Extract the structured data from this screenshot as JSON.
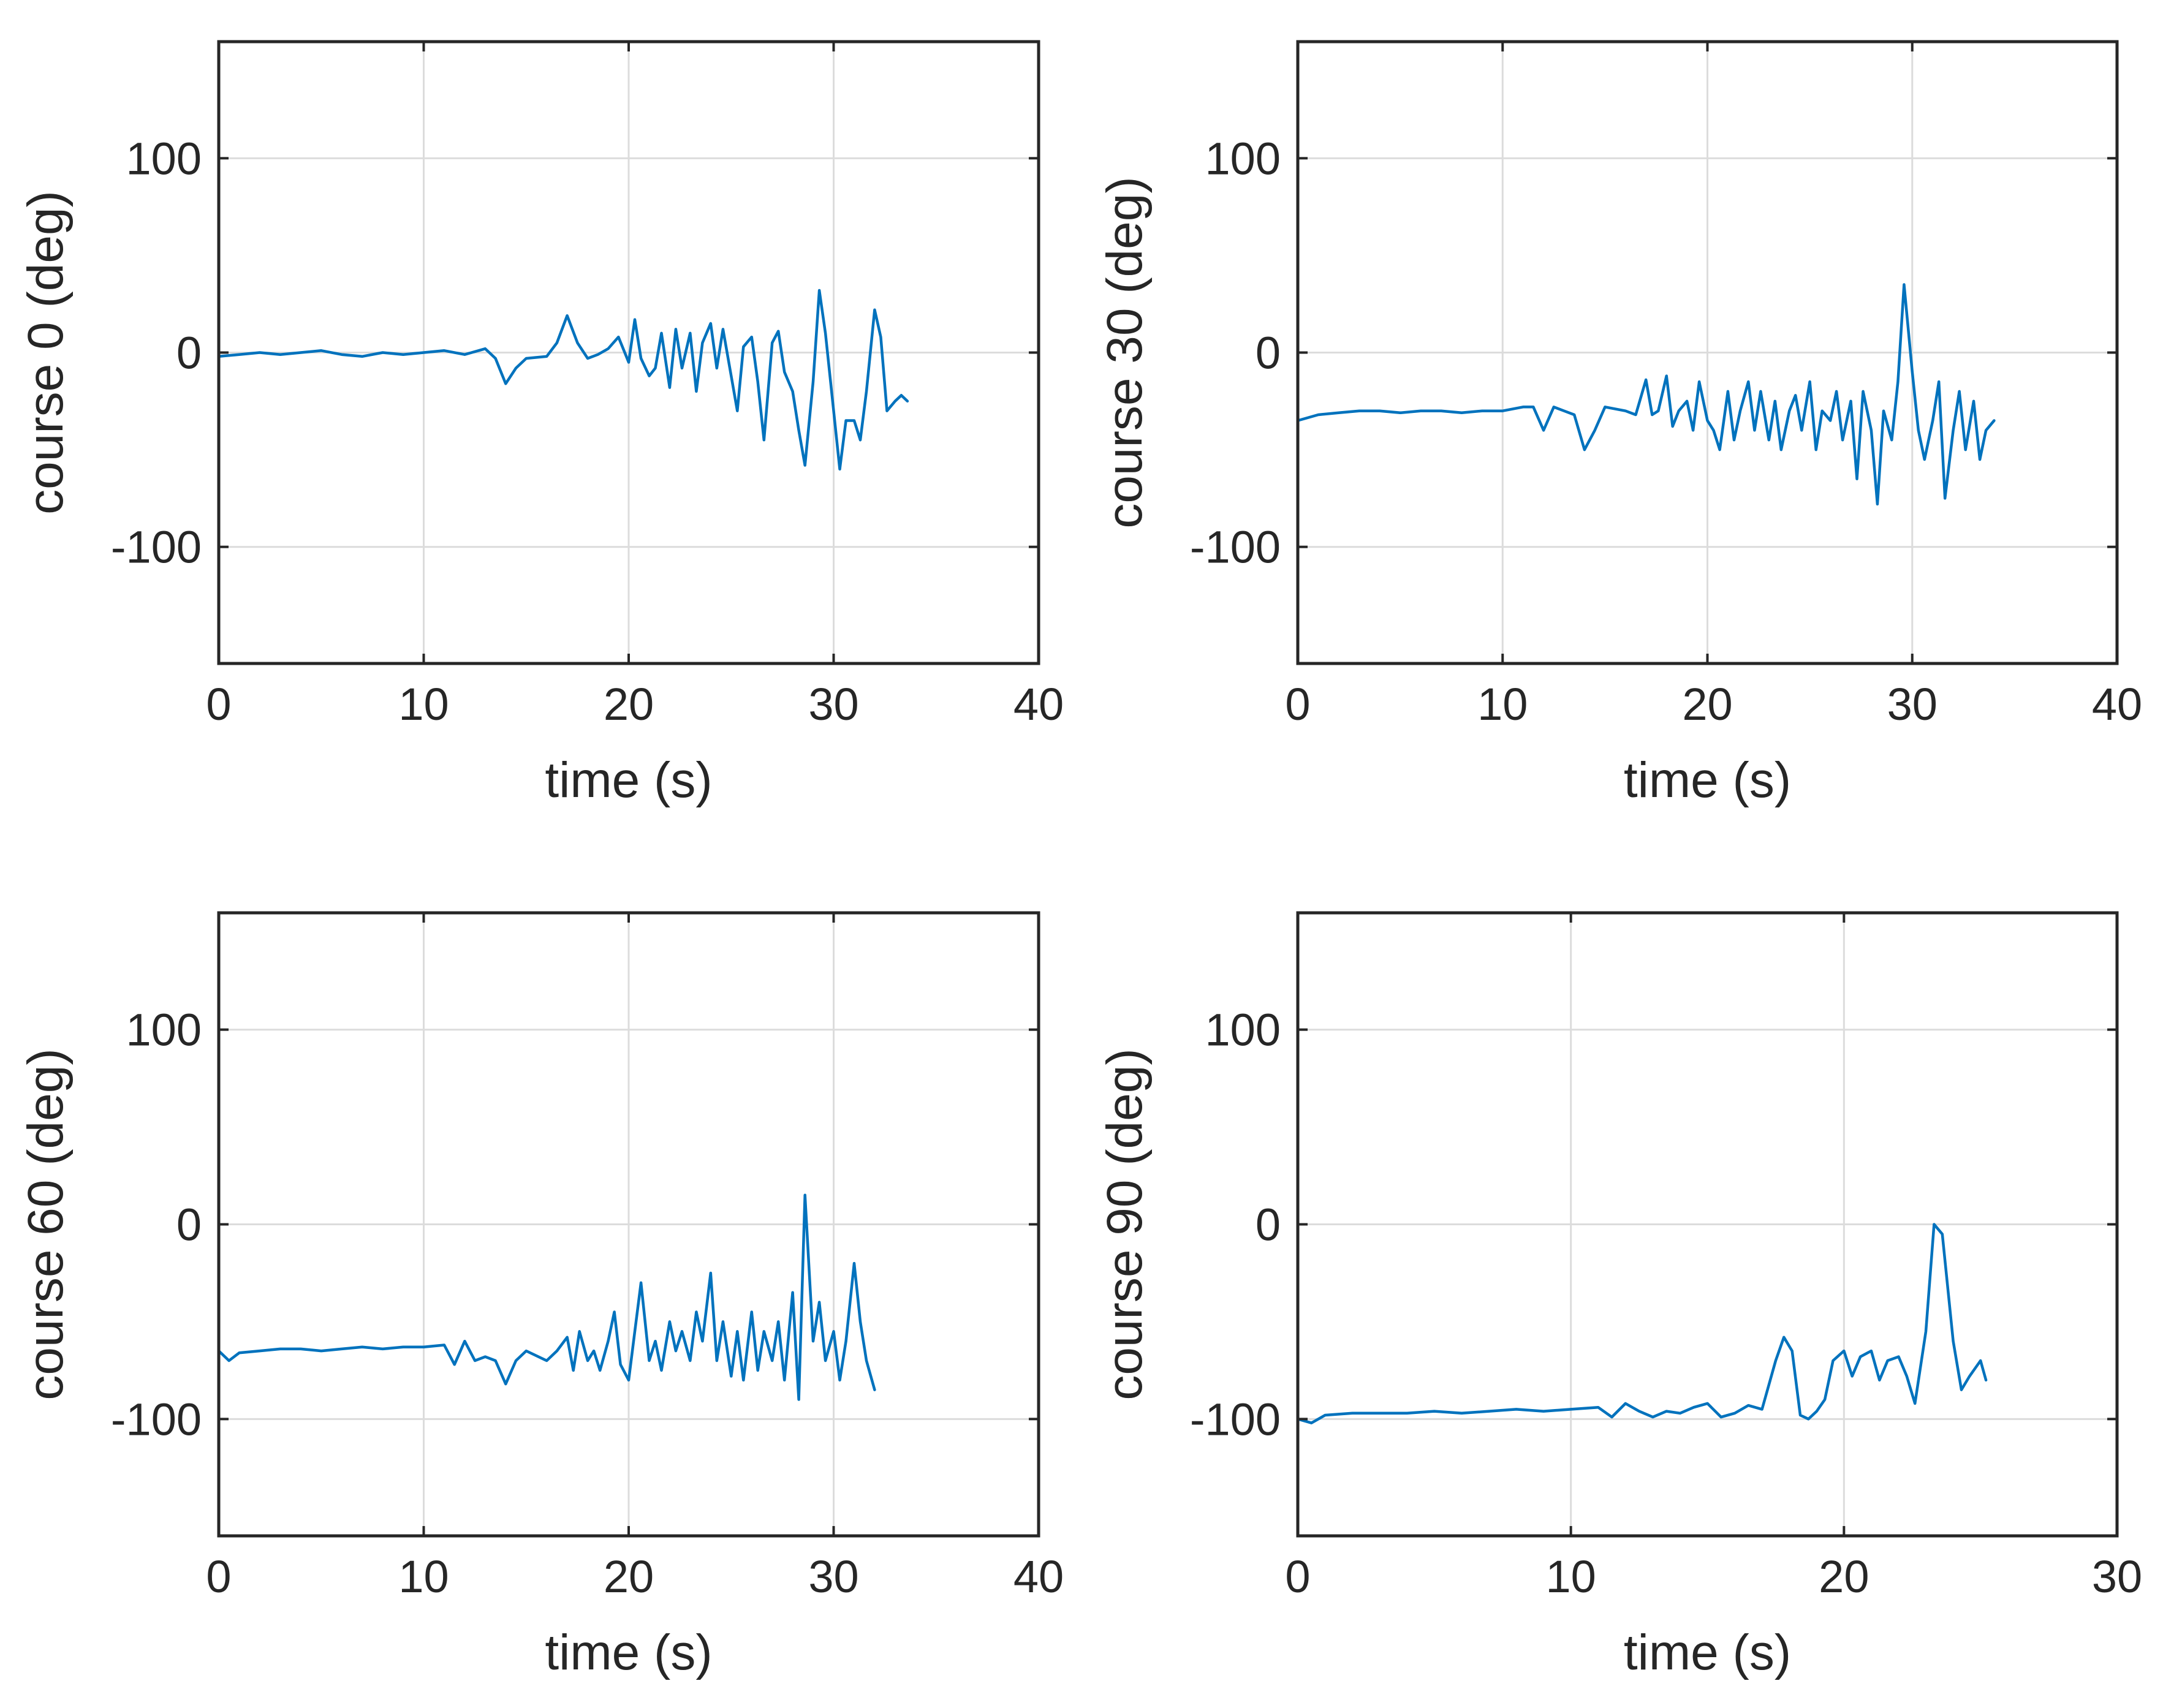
{
  "colors": {
    "series": "#0072BD",
    "axis": "#262626",
    "grid": "#dcdcdc"
  },
  "chart_data": [
    {
      "type": "line",
      "xlabel": "time (s)",
      "ylabel": "course 0 (deg)",
      "xlim": [
        0,
        40
      ],
      "ylim": [
        -160,
        160
      ],
      "xticks": [
        0,
        10,
        20,
        30,
        40
      ],
      "yticks": [
        -100,
        0,
        100
      ],
      "grid": true,
      "series": [
        {
          "name": "course 0",
          "x": [
            0,
            1,
            2,
            3,
            4,
            5,
            6,
            7,
            8,
            9,
            10,
            11,
            12,
            13,
            13.5,
            14,
            14.5,
            15,
            16,
            16.5,
            17,
            17.5,
            18,
            18.5,
            19,
            19.5,
            20,
            20.3,
            20.6,
            21,
            21.3,
            21.6,
            22,
            22.3,
            22.6,
            23,
            23.3,
            23.6,
            24,
            24.3,
            24.6,
            25,
            25.3,
            25.6,
            26,
            26.3,
            26.6,
            27,
            27.3,
            27.6,
            28,
            28.3,
            28.6,
            29,
            29.3,
            29.6,
            30,
            30.3,
            30.6,
            31,
            31.3,
            31.6,
            32,
            32.3,
            32.6,
            33,
            33.3,
            33.6
          ],
          "values": [
            -2,
            -1,
            0,
            -1,
            0,
            1,
            -1,
            -2,
            0,
            -1,
            0,
            1,
            -1,
            2,
            -3,
            -16,
            -8,
            -3,
            -2,
            5,
            19,
            5,
            -3,
            -1,
            2,
            8,
            -5,
            17,
            -3,
            -12,
            -8,
            10,
            -18,
            12,
            -8,
            10,
            -20,
            5,
            15,
            -8,
            12,
            -12,
            -30,
            3,
            8,
            -15,
            -45,
            5,
            11,
            -10,
            -20,
            -40,
            -58,
            -15,
            32,
            10,
            -30,
            -60,
            -35,
            -35,
            -45,
            -20,
            22,
            8,
            -30,
            -25,
            -22,
            -25
          ]
        }
      ]
    },
    {
      "type": "line",
      "xlabel": "time (s)",
      "ylabel": "course 30 (deg)",
      "xlim": [
        0,
        40
      ],
      "ylim": [
        -160,
        160
      ],
      "xticks": [
        0,
        10,
        20,
        30,
        40
      ],
      "yticks": [
        -100,
        0,
        100
      ],
      "grid": true,
      "series": [
        {
          "name": "course 30",
          "x": [
            0,
            1,
            2,
            3,
            4,
            5,
            6,
            7,
            8,
            9,
            10,
            11,
            11.5,
            12,
            12.5,
            13,
            13.5,
            14,
            14.5,
            15,
            16,
            16.5,
            17,
            17.3,
            17.6,
            18,
            18.3,
            18.6,
            19,
            19.3,
            19.6,
            20,
            20.3,
            20.6,
            21,
            21.3,
            21.6,
            22,
            22.3,
            22.6,
            23,
            23.3,
            23.6,
            24,
            24.3,
            24.6,
            25,
            25.3,
            25.6,
            26,
            26.3,
            26.6,
            27,
            27.3,
            27.6,
            28,
            28.3,
            28.6,
            29,
            29.3,
            29.6,
            30,
            30.3,
            30.6,
            31,
            31.3,
            31.6,
            32,
            32.3,
            32.6,
            33,
            33.3,
            33.6,
            34
          ],
          "values": [
            -35,
            -32,
            -31,
            -30,
            -30,
            -31,
            -30,
            -30,
            -31,
            -30,
            -30,
            -28,
            -28,
            -40,
            -28,
            -30,
            -32,
            -50,
            -40,
            -28,
            -30,
            -32,
            -14,
            -32,
            -30,
            -12,
            -38,
            -30,
            -25,
            -40,
            -15,
            -35,
            -40,
            -50,
            -20,
            -45,
            -30,
            -15,
            -40,
            -20,
            -45,
            -25,
            -50,
            -30,
            -22,
            -40,
            -15,
            -50,
            -30,
            -35,
            -20,
            -45,
            -25,
            -65,
            -20,
            -40,
            -78,
            -30,
            -45,
            -15,
            35,
            -10,
            -40,
            -55,
            -35,
            -15,
            -75,
            -40,
            -20,
            -50,
            -25,
            -55,
            -40,
            -35
          ]
        }
      ]
    },
    {
      "type": "line",
      "xlabel": "time (s)",
      "ylabel": "course 60 (deg)",
      "xlim": [
        0,
        40
      ],
      "ylim": [
        -160,
        160
      ],
      "xticks": [
        0,
        10,
        20,
        30,
        40
      ],
      "yticks": [
        -100,
        0,
        100
      ],
      "grid": true,
      "series": [
        {
          "name": "course 60",
          "x": [
            0,
            0.5,
            1,
            2,
            3,
            4,
            5,
            6,
            7,
            8,
            9,
            10,
            11,
            11.5,
            12,
            12.5,
            13,
            13.5,
            14,
            14.5,
            15,
            16,
            16.5,
            17,
            17.3,
            17.6,
            18,
            18.3,
            18.6,
            19,
            19.3,
            19.6,
            20,
            20.3,
            20.6,
            21,
            21.3,
            21.6,
            22,
            22.3,
            22.6,
            23,
            23.3,
            23.6,
            24,
            24.3,
            24.6,
            25,
            25.3,
            25.6,
            26,
            26.3,
            26.6,
            27,
            27.3,
            27.6,
            28,
            28.3,
            28.6,
            29,
            29.3,
            29.6,
            30,
            30.3,
            30.6,
            31,
            31.3,
            31.6,
            32
          ],
          "values": [
            -65,
            -70,
            -66,
            -65,
            -64,
            -64,
            -65,
            -64,
            -63,
            -64,
            -63,
            -63,
            -62,
            -72,
            -60,
            -70,
            -68,
            -70,
            -82,
            -70,
            -65,
            -70,
            -65,
            -58,
            -75,
            -55,
            -70,
            -65,
            -75,
            -60,
            -45,
            -72,
            -80,
            -55,
            -30,
            -70,
            -60,
            -75,
            -50,
            -65,
            -55,
            -70,
            -45,
            -60,
            -25,
            -70,
            -50,
            -78,
            -55,
            -80,
            -45,
            -75,
            -55,
            -70,
            -50,
            -80,
            -35,
            -90,
            15,
            -60,
            -40,
            -70,
            -55,
            -80,
            -60,
            -20,
            -50,
            -70,
            -85
          ]
        }
      ]
    },
    {
      "type": "line",
      "xlabel": "time (s)",
      "ylabel": "course 90 (deg)",
      "xlim": [
        0,
        30
      ],
      "ylim": [
        -160,
        160
      ],
      "xticks": [
        0,
        10,
        20,
        30
      ],
      "yticks": [
        -100,
        0,
        100
      ],
      "grid": true,
      "series": [
        {
          "name": "course 90",
          "x": [
            0,
            0.5,
            1,
            2,
            3,
            4,
            5,
            6,
            7,
            8,
            9,
            10,
            11,
            11.5,
            12,
            12.5,
            13,
            13.5,
            14,
            14.5,
            15,
            15.5,
            16,
            16.5,
            17,
            17.5,
            17.8,
            18.1,
            18.4,
            18.7,
            19,
            19.3,
            19.6,
            20,
            20.3,
            20.6,
            21,
            21.3,
            21.6,
            22,
            22.3,
            22.6,
            23,
            23.3,
            23.6,
            24,
            24.3,
            24.6,
            25,
            25.2
          ],
          "values": [
            -100,
            -102,
            -98,
            -97,
            -97,
            -97,
            -96,
            -97,
            -96,
            -95,
            -96,
            -95,
            -94,
            -99,
            -92,
            -96,
            -99,
            -96,
            -97,
            -94,
            -92,
            -99,
            -97,
            -93,
            -95,
            -70,
            -58,
            -65,
            -98,
            -100,
            -96,
            -90,
            -70,
            -65,
            -78,
            -68,
            -65,
            -80,
            -70,
            -68,
            -78,
            -92,
            -55,
            0,
            -5,
            -60,
            -85,
            -78,
            -70,
            -80
          ]
        }
      ]
    }
  ]
}
